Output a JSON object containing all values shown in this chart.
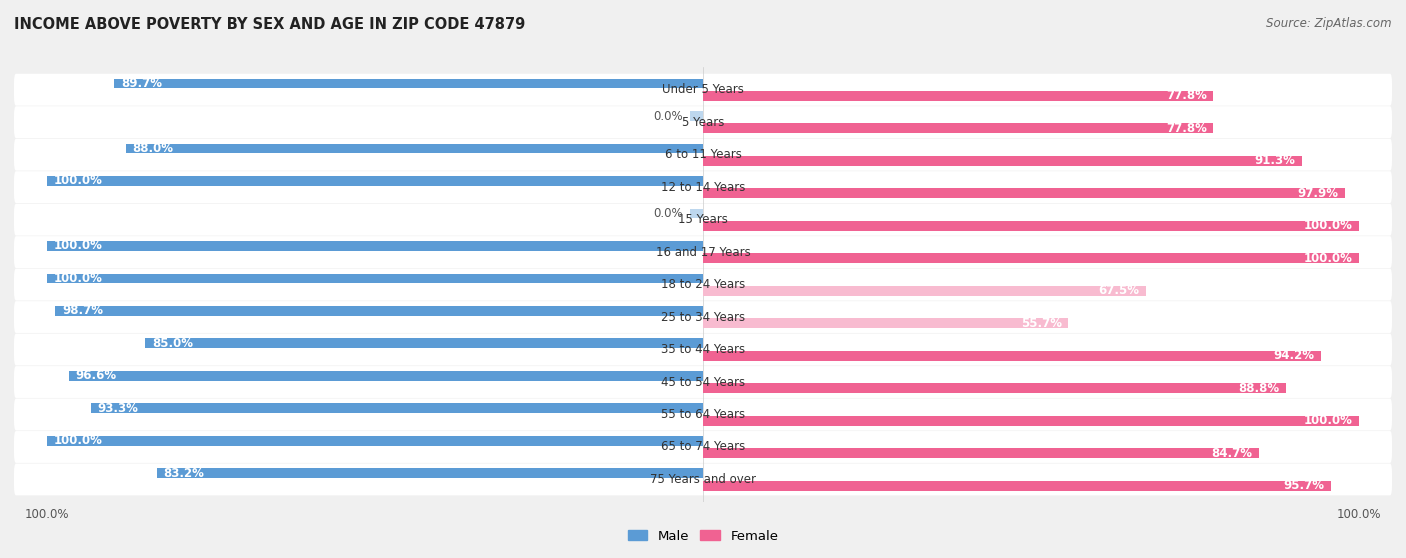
{
  "title": "INCOME ABOVE POVERTY BY SEX AND AGE IN ZIP CODE 47879",
  "source": "Source: ZipAtlas.com",
  "categories": [
    "Under 5 Years",
    "5 Years",
    "6 to 11 Years",
    "12 to 14 Years",
    "15 Years",
    "16 and 17 Years",
    "18 to 24 Years",
    "25 to 34 Years",
    "35 to 44 Years",
    "45 to 54 Years",
    "55 to 64 Years",
    "65 to 74 Years",
    "75 Years and over"
  ],
  "male_values": [
    89.7,
    0.0,
    88.0,
    100.0,
    0.0,
    100.0,
    100.0,
    98.7,
    85.0,
    96.6,
    93.3,
    100.0,
    83.2
  ],
  "female_values": [
    77.8,
    77.8,
    91.3,
    97.9,
    100.0,
    100.0,
    67.5,
    55.7,
    94.2,
    88.8,
    100.0,
    84.7,
    95.7
  ],
  "male_color": "#5B9BD5",
  "female_color": "#F06292",
  "male_low_color": "#BDD7EE",
  "female_low_color": "#F8BBD0",
  "background_color": "#f0f0f0",
  "row_bg_color": "#ffffff",
  "row_bg_alt": "#f0f0f0",
  "label_fontsize": 8.5,
  "title_fontsize": 10.5,
  "source_fontsize": 8.5,
  "legend_fontsize": 9.5,
  "axis_label_fontsize": 8.5,
  "threshold": 75
}
